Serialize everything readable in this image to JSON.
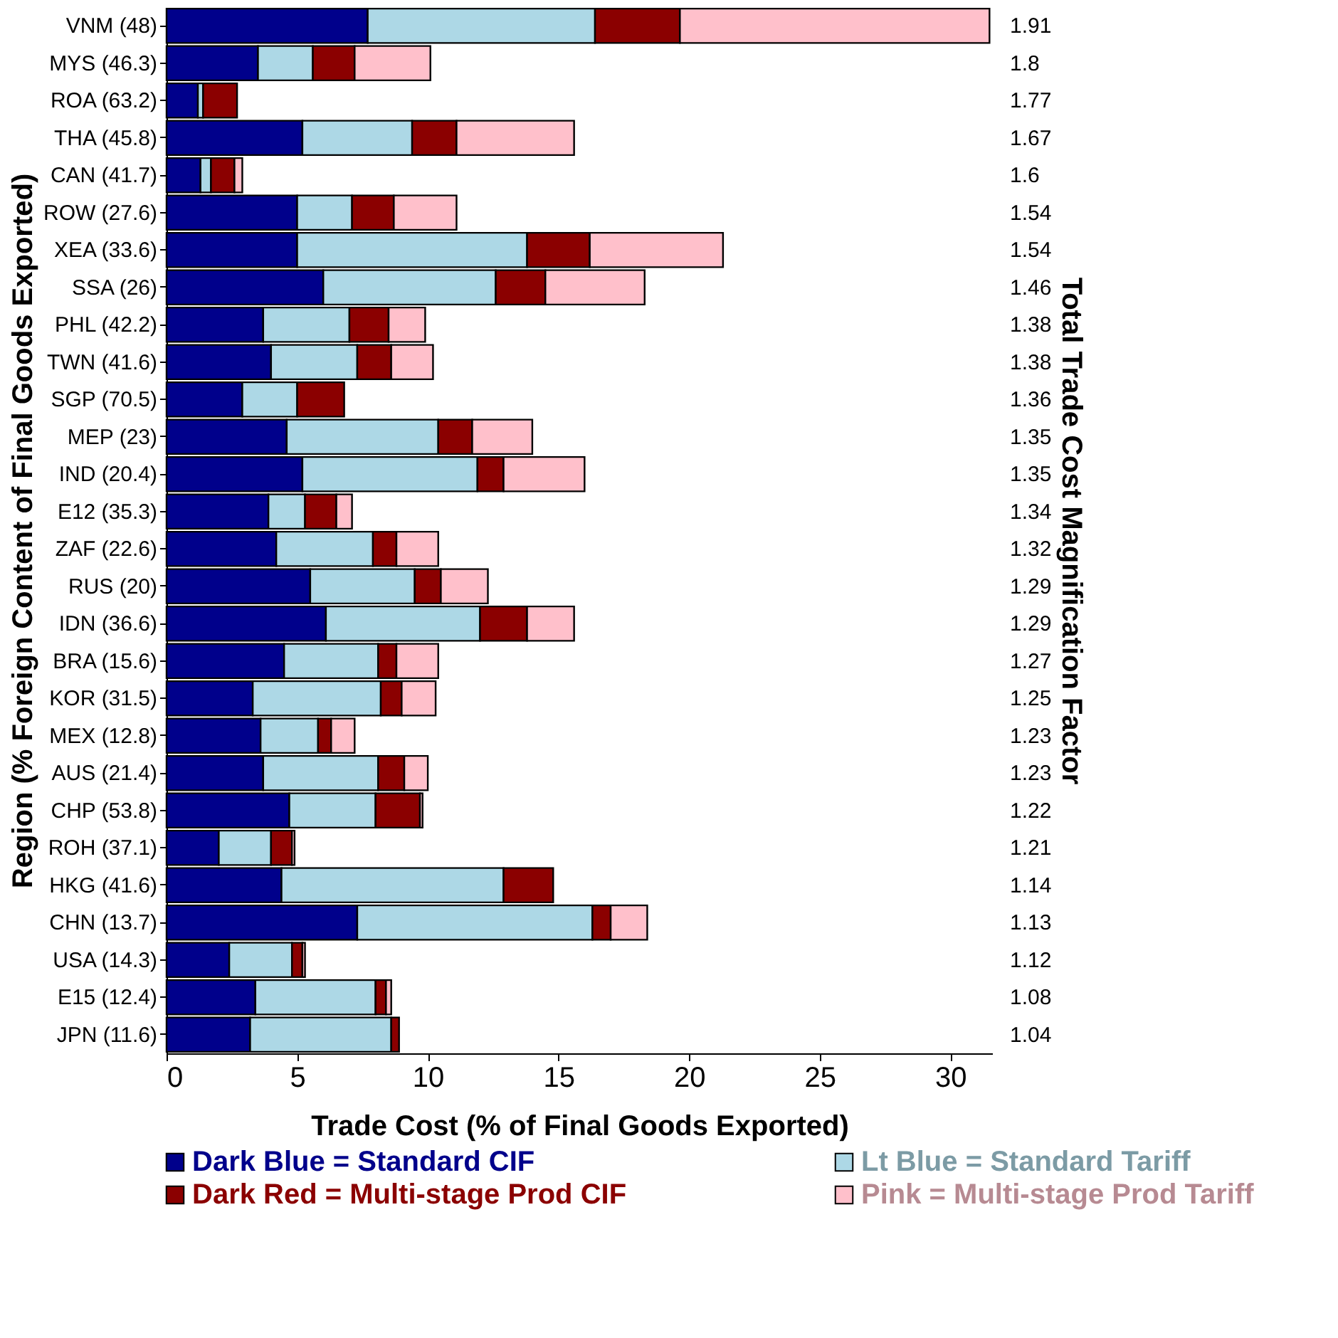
{
  "chart_data": {
    "type": "bar",
    "orientation": "horizontal",
    "stacked": true,
    "xlabel": "Trade Cost (% of Final Goods Exported)",
    "ylabel": "Region (% Foreign Content of Final Goods Exported)",
    "y2label": "Total Trade Cost Magnification Factor",
    "categories": [
      "VNM (48)",
      "MYS (46.3)",
      "ROA (63.2)",
      "THA (45.8)",
      "CAN (41.7)",
      "ROW (27.6)",
      "XEA (33.6)",
      "SSA (26)",
      "PHL (42.2)",
      "TWN (41.6)",
      "SGP (70.5)",
      "MEP (23)",
      "IND (20.4)",
      "E12 (35.3)",
      "ZAF (22.6)",
      "RUS (20)",
      "IDN (36.6)",
      "BRA (15.6)",
      "KOR (31.5)",
      "MEX (12.8)",
      "AUS (21.4)",
      "CHP (53.8)",
      "ROH (37.1)",
      "HKG (41.6)",
      "CHN (13.7)",
      "USA (14.3)",
      "E15 (12.4)",
      "JPN (11.6)"
    ],
    "y2_categories": [
      "1.91",
      "1.8",
      "1.77",
      "1.67",
      "1.6",
      "1.54",
      "1.54",
      "1.46",
      "1.38",
      "1.38",
      "1.36",
      "1.35",
      "1.35",
      "1.34",
      "1.32",
      "1.29",
      "1.29",
      "1.27",
      "1.25",
      "1.23",
      "1.23",
      "1.22",
      "1.21",
      "1.14",
      "1.13",
      "1.12",
      "1.08",
      "1.04"
    ],
    "series": [
      {
        "name": "Dark Blue = Standard CIF",
        "color": "#00008b",
        "values": [
          7.7,
          3.5,
          1.2,
          5.2,
          1.3,
          5.0,
          5.0,
          6.0,
          3.7,
          4.0,
          2.9,
          4.6,
          5.2,
          3.9,
          4.2,
          5.5,
          6.1,
          4.5,
          3.3,
          3.6,
          3.7,
          4.7,
          2.0,
          4.4,
          7.3,
          2.4,
          3.4,
          3.2
        ]
      },
      {
        "name": "Lt Blue = Standard Tariff",
        "color": "#add8e6",
        "values": [
          8.7,
          2.1,
          0.2,
          4.2,
          0.4,
          2.1,
          8.8,
          6.6,
          3.3,
          3.3,
          2.1,
          5.8,
          6.7,
          1.4,
          3.7,
          4.0,
          5.9,
          3.6,
          4.9,
          2.2,
          4.4,
          3.3,
          2.0,
          8.5,
          9.0,
          2.4,
          4.6,
          5.4
        ]
      },
      {
        "name": "Dark Red = Multi-stage Prod CIF",
        "color": "#8b0000",
        "values": [
          3.25,
          1.6,
          1.3,
          1.7,
          0.9,
          1.6,
          2.4,
          1.9,
          1.5,
          1.3,
          1.8,
          1.3,
          1.0,
          1.2,
          0.9,
          1.0,
          1.8,
          0.7,
          0.8,
          0.5,
          1.0,
          1.7,
          0.8,
          1.9,
          0.7,
          0.4,
          0.4,
          0.3
        ]
      },
      {
        "name": "Pink = Multi-stage Prod Tariff",
        "color": "#ffc0cb",
        "values": [
          11.85,
          2.9,
          0,
          4.5,
          0.3,
          2.4,
          5.1,
          3.8,
          1.4,
          1.6,
          0,
          2.3,
          3.1,
          0.6,
          1.6,
          1.8,
          1.8,
          1.6,
          1.3,
          0.9,
          0.9,
          0.1,
          0.1,
          0,
          1.4,
          0.1,
          0.2,
          0
        ]
      }
    ],
    "xlim": [
      0,
      31.6
    ],
    "xticks": [
      0,
      5,
      10,
      15,
      20,
      25,
      30
    ],
    "legend": "bottom",
    "grid": false
  }
}
